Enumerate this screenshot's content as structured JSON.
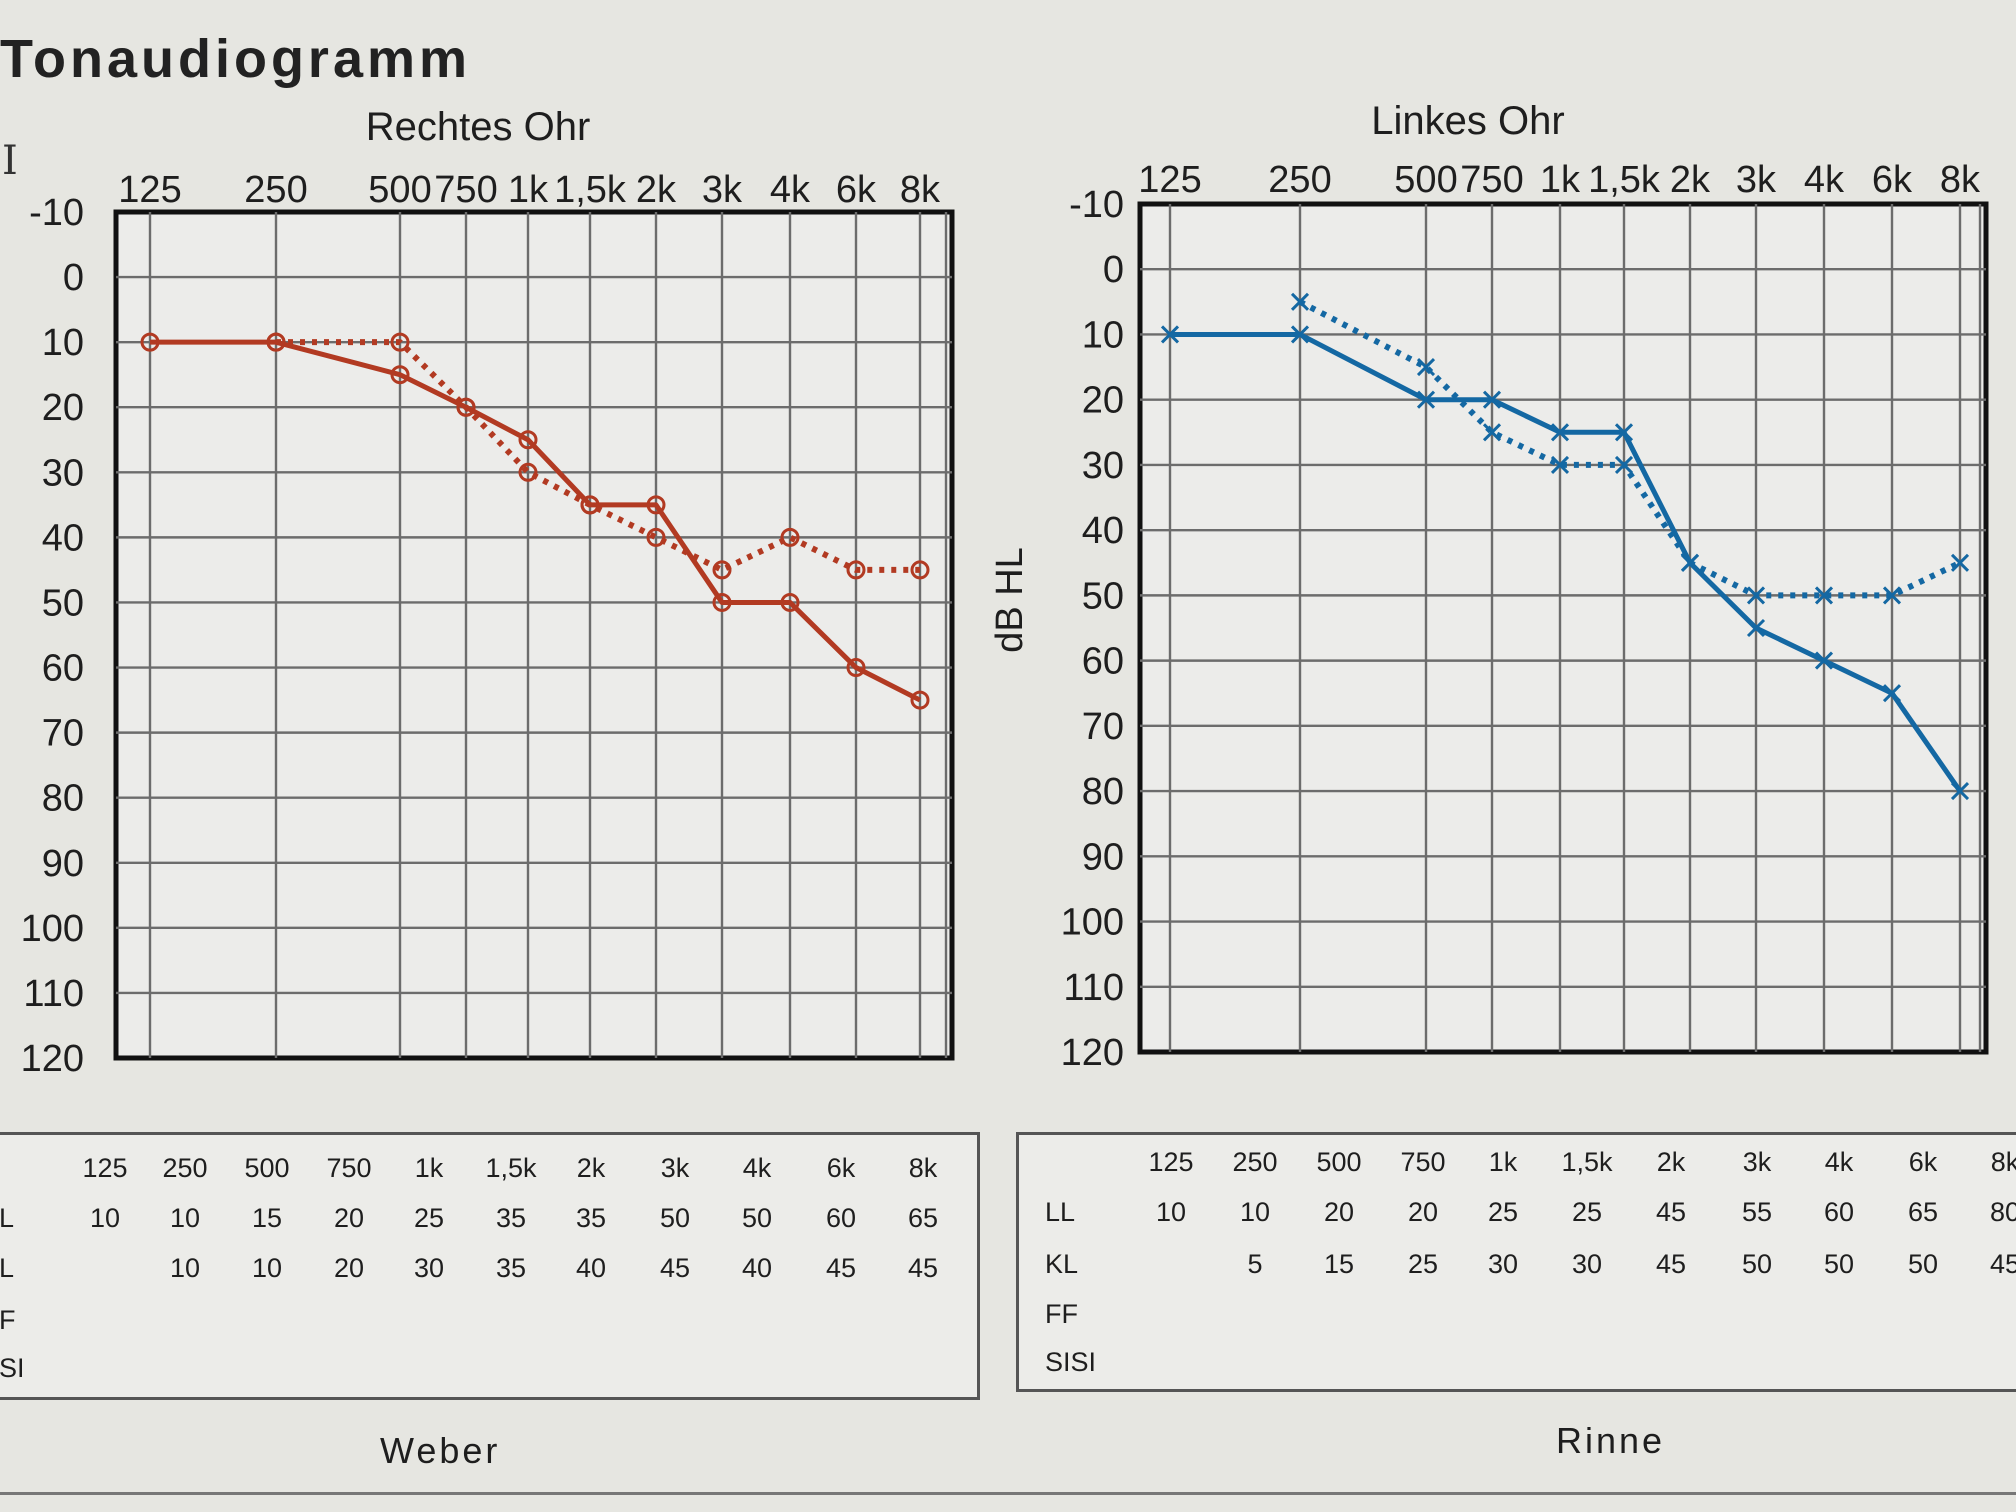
{
  "title": "Tonaudiogramm",
  "ylabel": "dB HL",
  "colors": {
    "right": "#b23a22",
    "left": "#1468a3"
  },
  "chart_data": [
    {
      "type": "line",
      "title": "Rechtes Ohr",
      "x_categories": [
        "125",
        "250",
        "500",
        "750",
        "1k",
        "1,5k",
        "2k",
        "3k",
        "4k",
        "6k",
        "8k"
      ],
      "y_ticks": [
        "-10",
        "0",
        "10",
        "20",
        "30",
        "40",
        "50",
        "60",
        "70",
        "80",
        "90",
        "100",
        "110",
        "120"
      ],
      "ylim": [
        -10,
        120
      ],
      "y_inverted": true,
      "grid": true,
      "marker": "circle",
      "color": "#b23a22",
      "series": [
        {
          "name": "LL",
          "style": "solid",
          "values": [
            10,
            10,
            15,
            20,
            25,
            35,
            35,
            50,
            50,
            60,
            65
          ]
        },
        {
          "name": "KL",
          "style": "dotted",
          "values": [
            null,
            10,
            10,
            20,
            30,
            35,
            40,
            45,
            40,
            45,
            45
          ]
        }
      ]
    },
    {
      "type": "line",
      "title": "Linkes Ohr",
      "x_categories": [
        "125",
        "250",
        "500",
        "750",
        "1k",
        "1,5k",
        "2k",
        "3k",
        "4k",
        "6k",
        "8k"
      ],
      "y_ticks": [
        "-10",
        "0",
        "10",
        "20",
        "30",
        "40",
        "50",
        "60",
        "70",
        "80",
        "90",
        "100",
        "110",
        "120"
      ],
      "ylim": [
        -10,
        120
      ],
      "y_inverted": true,
      "grid": true,
      "marker": "cross",
      "color": "#1468a3",
      "series": [
        {
          "name": "LL",
          "style": "solid",
          "values": [
            10,
            10,
            20,
            20,
            25,
            25,
            45,
            55,
            60,
            65,
            80
          ]
        },
        {
          "name": "KL",
          "style": "dotted",
          "values": [
            null,
            5,
            15,
            25,
            30,
            30,
            45,
            50,
            50,
            50,
            45
          ]
        }
      ]
    }
  ],
  "tables": {
    "right": {
      "headers": [
        "125",
        "250",
        "500",
        "750",
        "1k",
        "1,5k",
        "2k",
        "3k",
        "4k",
        "6k",
        "8k"
      ],
      "rows": [
        {
          "label": "L",
          "values": [
            "10",
            "10",
            "15",
            "20",
            "25",
            "35",
            "35",
            "50",
            "50",
            "60",
            "65"
          ]
        },
        {
          "label": "L",
          "values": [
            "",
            "10",
            "10",
            "20",
            "30",
            "35",
            "40",
            "45",
            "40",
            "45",
            "45"
          ]
        },
        {
          "label": "F",
          "values": []
        },
        {
          "label": "SI",
          "values": []
        }
      ]
    },
    "left": {
      "headers": [
        "125",
        "250",
        "500",
        "750",
        "1k",
        "1,5k",
        "2k",
        "3k",
        "4k",
        "6k",
        "8k"
      ],
      "rows": [
        {
          "label": "LL",
          "values": [
            "10",
            "10",
            "20",
            "20",
            "25",
            "25",
            "45",
            "55",
            "60",
            "65",
            "80"
          ]
        },
        {
          "label": "KL",
          "values": [
            "",
            "5",
            "15",
            "25",
            "30",
            "30",
            "45",
            "50",
            "50",
            "50",
            "45"
          ]
        },
        {
          "label": "FF",
          "values": []
        },
        {
          "label": "SISI",
          "values": []
        }
      ]
    }
  },
  "footer": {
    "left": "Weber",
    "right": "Rinne"
  }
}
